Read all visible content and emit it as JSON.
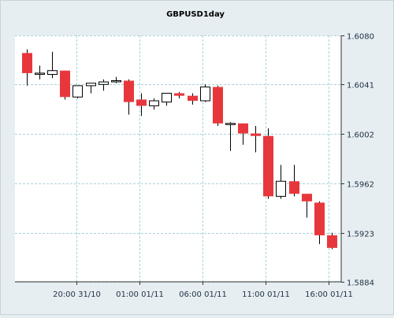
{
  "chart_data": {
    "type": "candlestick",
    "title": "GBPUSD1day",
    "yticks": [
      "1.6080",
      "1.6041",
      "1.6002",
      "1.5962",
      "1.5923",
      "1.5884"
    ],
    "ylim": [
      1.5884,
      1.608
    ],
    "xticks": [
      "20:00 31/10",
      "01:00 01/11",
      "06:00 01/11",
      "11:00 01/11",
      "16:00 01/11"
    ],
    "grid": true,
    "colors": {
      "background": "#e6eef2",
      "plot_background": "#ffffff",
      "grid": "#a9d3d9",
      "bear": "#e8373c",
      "bull": "#ffffff",
      "wick": "#000000",
      "text": "#223344"
    },
    "candles": [
      {
        "o": 1.6066,
        "h": 1.6069,
        "l": 1.604,
        "c": 1.605
      },
      {
        "o": 1.605,
        "h": 1.6056,
        "l": 1.6045,
        "c": 1.605
      },
      {
        "o": 1.6049,
        "h": 1.6067,
        "l": 1.6046,
        "c": 1.6052
      },
      {
        "o": 1.6052,
        "h": 1.6052,
        "l": 1.6029,
        "c": 1.6031
      },
      {
        "o": 1.6031,
        "h": 1.604,
        "l": 1.603,
        "c": 1.604
      },
      {
        "o": 1.604,
        "h": 1.6042,
        "l": 1.6034,
        "c": 1.6042
      },
      {
        "o": 1.6041,
        "h": 1.6045,
        "l": 1.6036,
        "c": 1.6043
      },
      {
        "o": 1.6044,
        "h": 1.6047,
        "l": 1.6042,
        "c": 1.6044
      },
      {
        "o": 1.6044,
        "h": 1.6045,
        "l": 1.6017,
        "c": 1.6027
      },
      {
        "o": 1.6029,
        "h": 1.6034,
        "l": 1.6016,
        "c": 1.6024
      },
      {
        "o": 1.6024,
        "h": 1.603,
        "l": 1.6021,
        "c": 1.6028
      },
      {
        "o": 1.6027,
        "h": 1.6034,
        "l": 1.6024,
        "c": 1.6034
      },
      {
        "o": 1.6034,
        "h": 1.6035,
        "l": 1.603,
        "c": 1.6032
      },
      {
        "o": 1.6032,
        "h": 1.6034,
        "l": 1.6025,
        "c": 1.6028
      },
      {
        "o": 1.6028,
        "h": 1.6041,
        "l": 1.6027,
        "c": 1.6039
      },
      {
        "o": 1.6039,
        "h": 1.604,
        "l": 1.6008,
        "c": 1.601
      },
      {
        "o": 1.601,
        "h": 1.6011,
        "l": 1.5988,
        "c": 1.601
      },
      {
        "o": 1.601,
        "h": 1.601,
        "l": 1.5993,
        "c": 1.6002
      },
      {
        "o": 1.6002,
        "h": 1.6008,
        "l": 1.5987,
        "c": 1.6
      },
      {
        "o": 1.6,
        "h": 1.6006,
        "l": 1.595,
        "c": 1.5952
      },
      {
        "o": 1.5952,
        "h": 1.5977,
        "l": 1.595,
        "c": 1.5964
      },
      {
        "o": 1.5964,
        "h": 1.5977,
        "l": 1.5952,
        "c": 1.5954
      },
      {
        "o": 1.5954,
        "h": 1.5954,
        "l": 1.5935,
        "c": 1.5948
      },
      {
        "o": 1.5947,
        "h": 1.5948,
        "l": 1.5914,
        "c": 1.5921
      },
      {
        "o": 1.5921,
        "h": 1.5923,
        "l": 1.591,
        "c": 1.5911
      }
    ]
  }
}
